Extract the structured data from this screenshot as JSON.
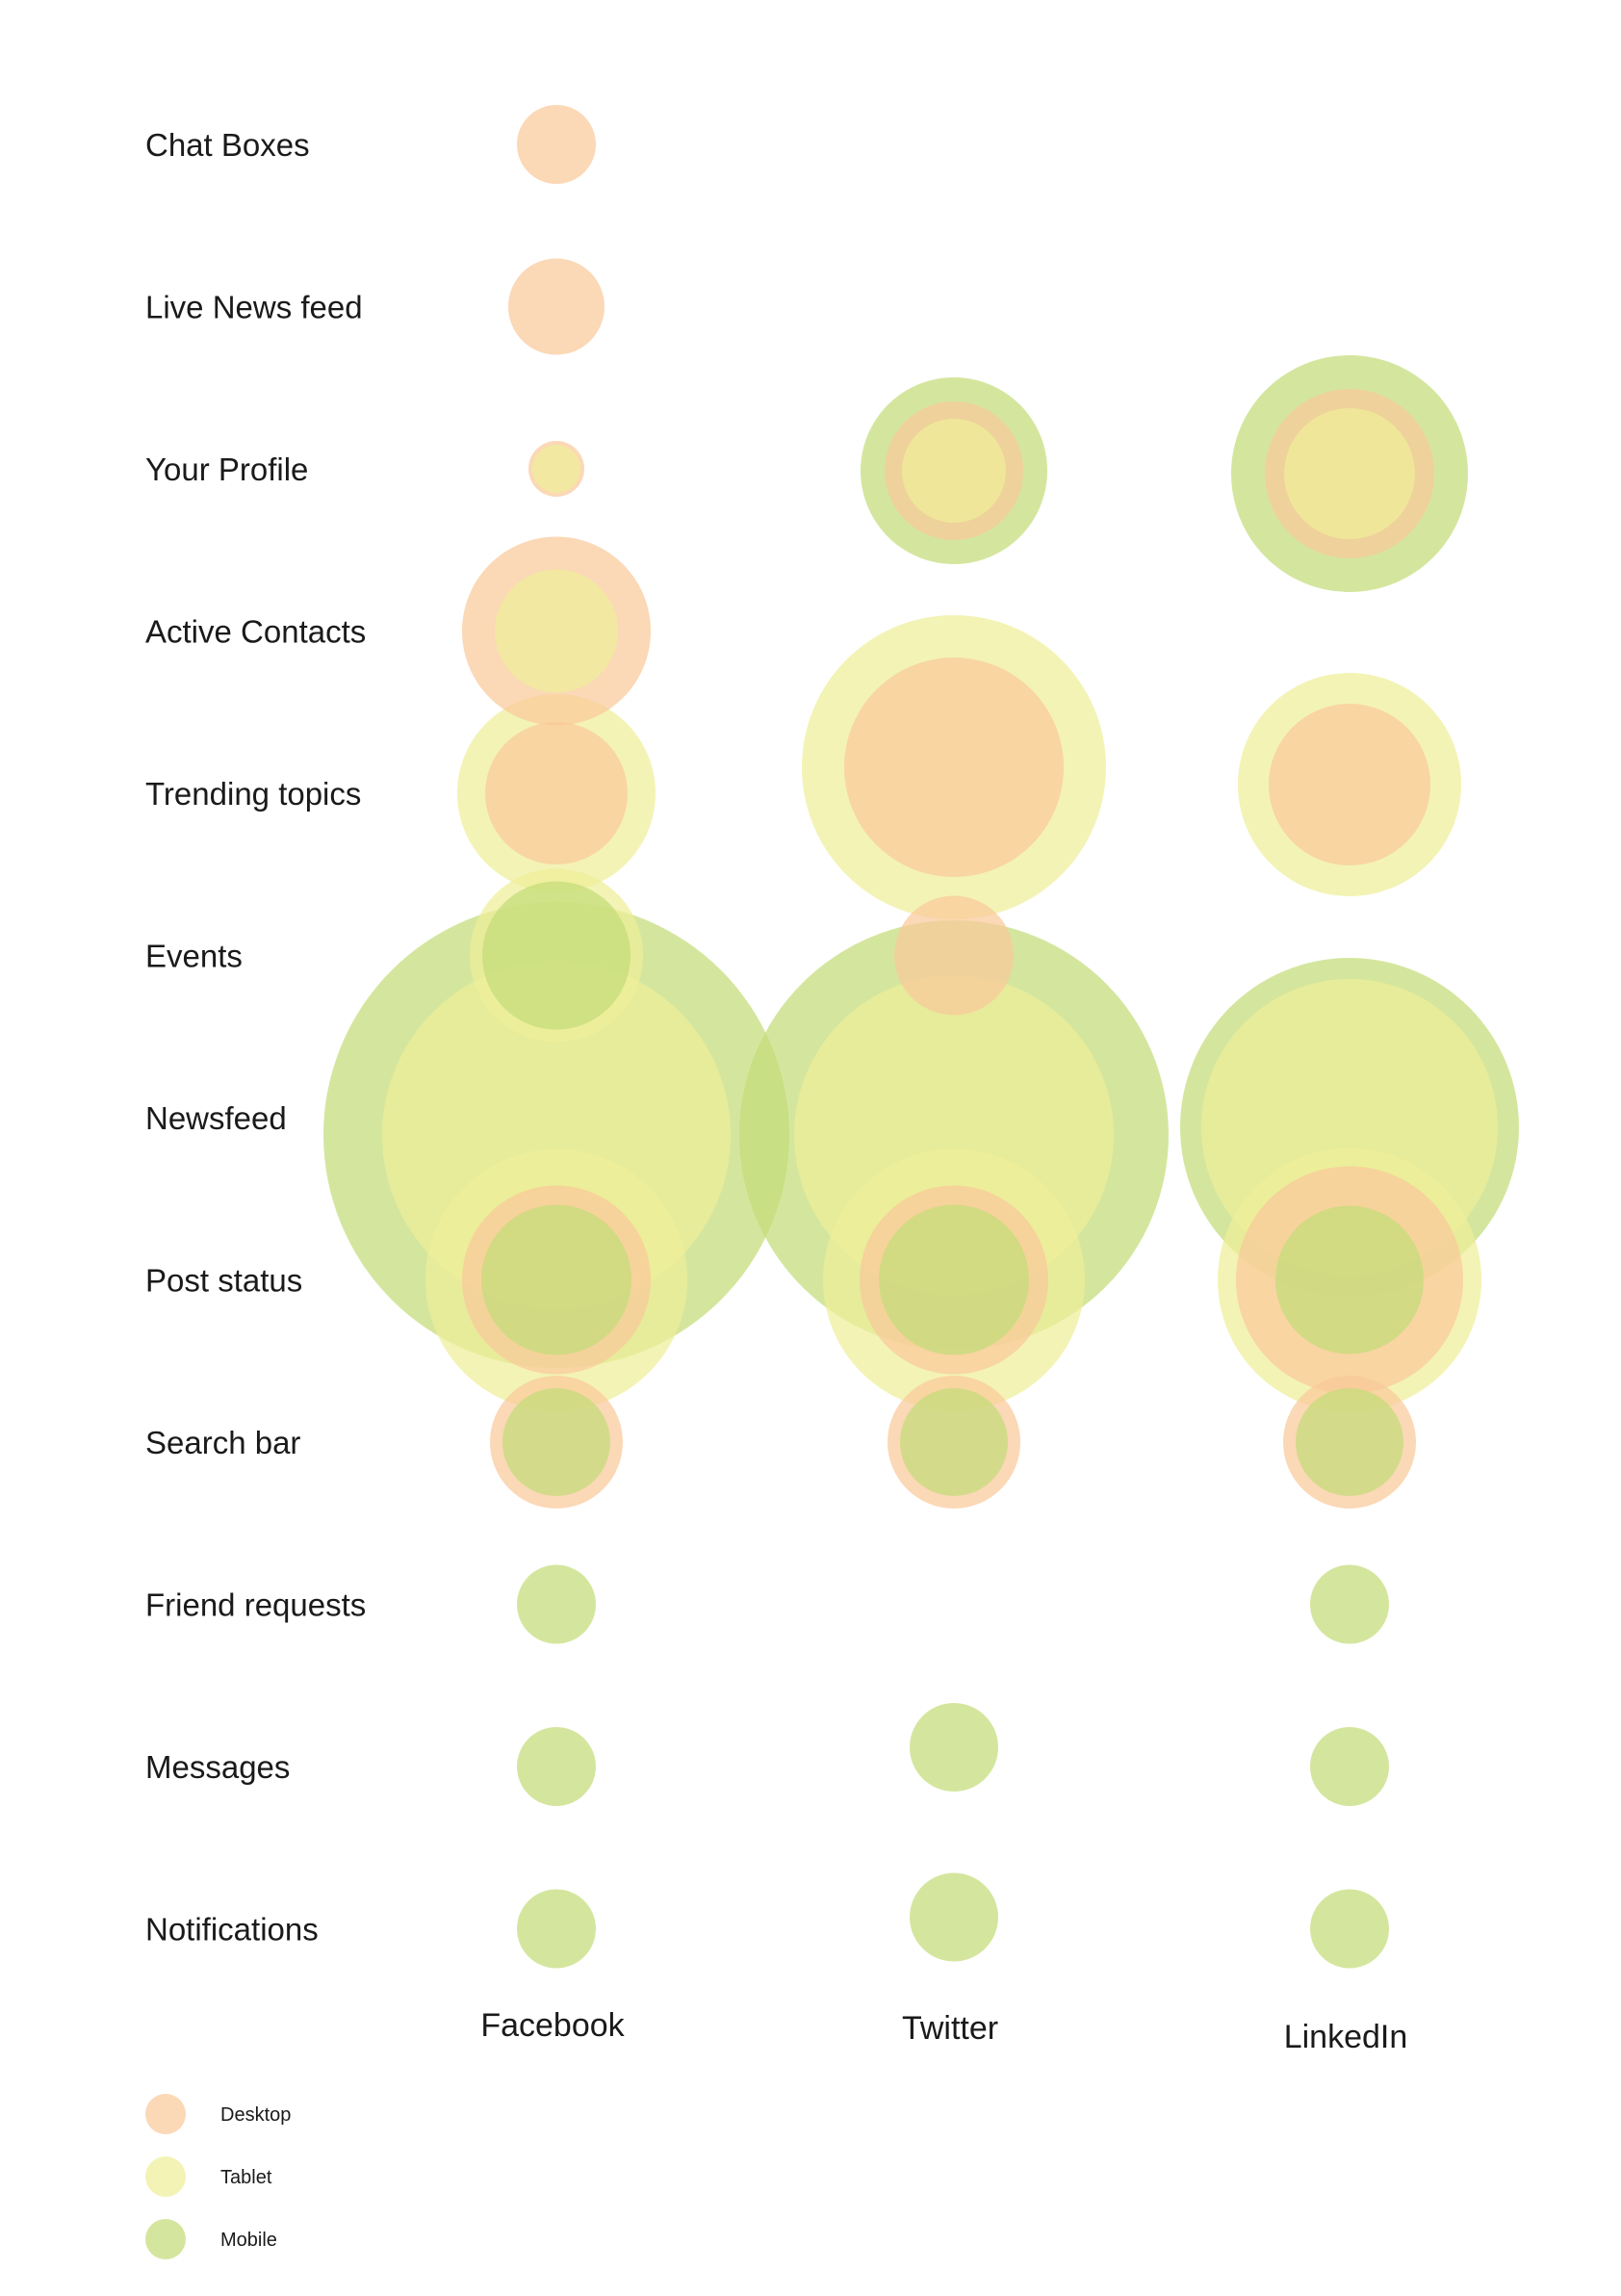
{
  "colors": {
    "Desktop": "#f9c99a",
    "Tablet": "#eeef98",
    "Mobile": "#c4dc78"
  },
  "chart_data": {
    "type": "bubble",
    "title": "",
    "features": [
      "Chat Boxes",
      "Live News feed",
      "Your Profile",
      "Active Contacts",
      "Trending topics",
      "Events",
      "Newsfeed",
      "Post status",
      "Search bar",
      "Friend requests",
      "Messages",
      "Notifications"
    ],
    "platforms": [
      "Facebook",
      "Twitter",
      "LinkedIn"
    ],
    "legend": [
      {
        "name": "Desktop"
      },
      {
        "name": "Tablet"
      },
      {
        "name": "Mobile"
      }
    ],
    "legend_position": "bottom-left",
    "bubble_value_scale": "relative bubble diameter",
    "values": {
      "Facebook": {
        "Chat Boxes": {
          "Desktop": 82,
          "Tablet": 0,
          "Mobile": 0
        },
        "Live News feed": {
          "Desktop": 100,
          "Tablet": 0,
          "Mobile": 0
        },
        "Your Profile": {
          "Desktop": 58,
          "Tablet": 50,
          "Mobile": 0
        },
        "Active Contacts": {
          "Desktop": 196,
          "Tablet": 128,
          "Mobile": 0
        },
        "Trending topics": {
          "Desktop": 148,
          "Tablet": 206,
          "Mobile": 0
        },
        "Events": {
          "Desktop": 0,
          "Tablet": 180,
          "Mobile": 154
        },
        "Newsfeed": {
          "Desktop": 0,
          "Tablet": 362,
          "Mobile": 484
        },
        "Post status": {
          "Desktop": 196,
          "Tablet": 272,
          "Mobile": 156
        },
        "Search bar": {
          "Desktop": 138,
          "Tablet": 0,
          "Mobile": 112
        },
        "Friend requests": {
          "Desktop": 0,
          "Tablet": 0,
          "Mobile": 82
        },
        "Messages": {
          "Desktop": 0,
          "Tablet": 0,
          "Mobile": 82
        },
        "Notifications": {
          "Desktop": 0,
          "Tablet": 0,
          "Mobile": 82
        }
      },
      "Twitter": {
        "Chat Boxes": {
          "Desktop": 0,
          "Tablet": 0,
          "Mobile": 0
        },
        "Live News feed": {
          "Desktop": 0,
          "Tablet": 0,
          "Mobile": 0
        },
        "Your Profile": {
          "Desktop": 144,
          "Tablet": 108,
          "Mobile": 194
        },
        "Active Contacts": {
          "Desktop": 0,
          "Tablet": 0,
          "Mobile": 0
        },
        "Trending topics": {
          "Desktop": 228,
          "Tablet": 316,
          "Mobile": 0
        },
        "Events": {
          "Desktop": 124,
          "Tablet": 0,
          "Mobile": 0
        },
        "Newsfeed": {
          "Desktop": 0,
          "Tablet": 332,
          "Mobile": 446
        },
        "Post status": {
          "Desktop": 196,
          "Tablet": 272,
          "Mobile": 156
        },
        "Search bar": {
          "Desktop": 138,
          "Tablet": 0,
          "Mobile": 112
        },
        "Friend requests": {
          "Desktop": 0,
          "Tablet": 0,
          "Mobile": 0
        },
        "Messages": {
          "Desktop": 0,
          "Tablet": 0,
          "Mobile": 92
        },
        "Notifications": {
          "Desktop": 0,
          "Tablet": 0,
          "Mobile": 92
        }
      },
      "LinkedIn": {
        "Chat Boxes": {
          "Desktop": 0,
          "Tablet": 0,
          "Mobile": 0
        },
        "Live News feed": {
          "Desktop": 0,
          "Tablet": 0,
          "Mobile": 0
        },
        "Your Profile": {
          "Desktop": 176,
          "Tablet": 136,
          "Mobile": 246
        },
        "Active Contacts": {
          "Desktop": 0,
          "Tablet": 0,
          "Mobile": 0
        },
        "Trending topics": {
          "Desktop": 168,
          "Tablet": 232,
          "Mobile": 0
        },
        "Events": {
          "Desktop": 0,
          "Tablet": 0,
          "Mobile": 0
        },
        "Newsfeed": {
          "Desktop": 0,
          "Tablet": 308,
          "Mobile": 352
        },
        "Post status": {
          "Desktop": 236,
          "Tablet": 274,
          "Mobile": 154
        },
        "Search bar": {
          "Desktop": 138,
          "Tablet": 0,
          "Mobile": 112
        },
        "Friend requests": {
          "Desktop": 0,
          "Tablet": 0,
          "Mobile": 82
        },
        "Messages": {
          "Desktop": 0,
          "Tablet": 0,
          "Mobile": 82
        },
        "Notifications": {
          "Desktop": 0,
          "Tablet": 0,
          "Mobile": 82
        }
      }
    }
  }
}
